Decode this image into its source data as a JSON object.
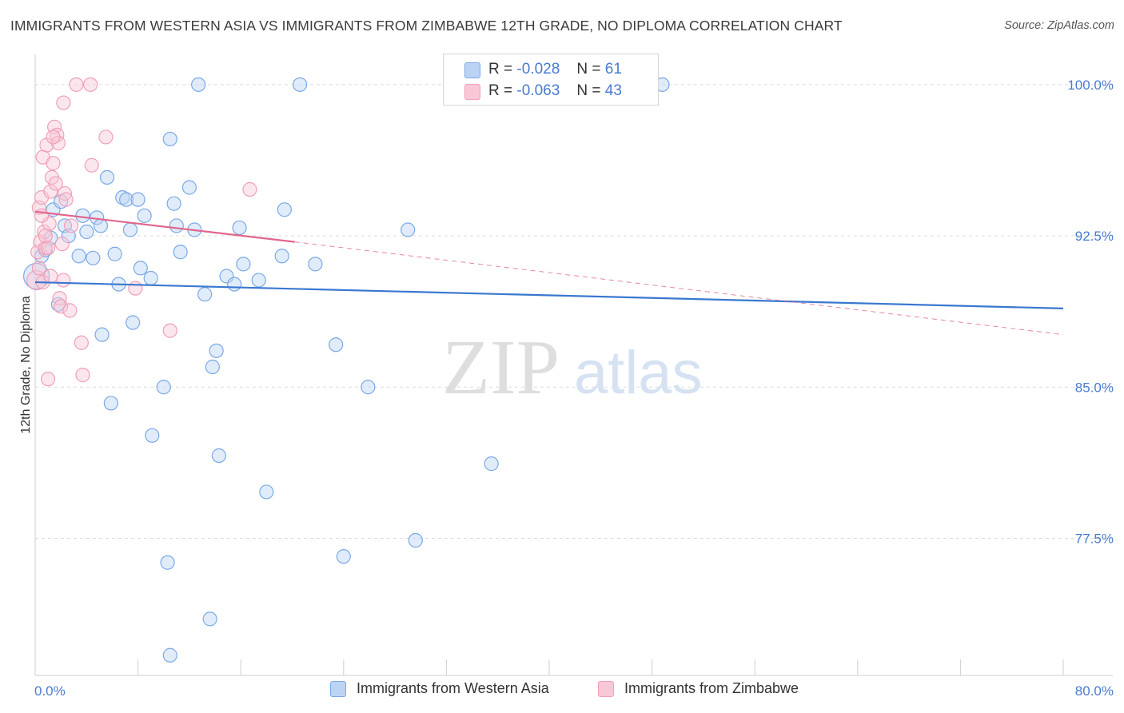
{
  "title": "IMMIGRANTS FROM WESTERN ASIA VS IMMIGRANTS FROM ZIMBABWE 12TH GRADE, NO DIPLOMA CORRELATION CHART",
  "source": "Source: ZipAtlas.com",
  "watermark": {
    "zip": "ZIP",
    "atlas": "atlas"
  },
  "legend": {
    "series1": {
      "r_label": "R =",
      "r_value": "-0.028",
      "n_label": "N =",
      "n_value": "61"
    },
    "series2": {
      "r_label": "R =",
      "r_value": "-0.063",
      "n_label": "N =",
      "n_value": "43"
    }
  },
  "chart_data": {
    "type": "scatter",
    "title": "IMMIGRANTS FROM WESTERN ASIA VS IMMIGRANTS FROM ZIMBABWE 12TH GRADE, NO DIPLOMA CORRELATION CHART",
    "xlabel": "",
    "ylabel": "12th Grade, No Diploma",
    "xlim": [
      0,
      80
    ],
    "ylim": [
      70.7,
      101.5
    ],
    "x_tick_labels": [
      "0.0%",
      "80.0%"
    ],
    "y_ticks": [
      77.5,
      85.0,
      92.5,
      100.0
    ],
    "y_tick_labels": [
      "77.5%",
      "85.0%",
      "92.5%",
      "100.0%"
    ],
    "grid": true,
    "series": [
      {
        "name": "Immigrants from Western Asia",
        "color": "#7aa9e6",
        "fill": "#bcd4f3",
        "line_color": "#3a78d0",
        "r": -0.028,
        "n": 61,
        "trend": {
          "x": [
            0,
            80
          ],
          "y": [
            90.2,
            88.9
          ]
        },
        "points": [
          [
            0.1,
            90.5
          ],
          [
            0.5,
            91.5
          ],
          [
            0.8,
            91.8
          ],
          [
            1.2,
            92.4
          ],
          [
            1.4,
            93.8
          ],
          [
            1.8,
            89.1
          ],
          [
            2.0,
            94.2
          ],
          [
            2.3,
            93.0
          ],
          [
            2.6,
            92.5
          ],
          [
            3.4,
            91.5
          ],
          [
            3.7,
            93.5
          ],
          [
            4.0,
            92.7
          ],
          [
            4.5,
            91.4
          ],
          [
            4.8,
            93.4
          ],
          [
            5.1,
            93.0
          ],
          [
            5.2,
            87.6
          ],
          [
            5.6,
            95.4
          ],
          [
            5.9,
            84.2
          ],
          [
            6.2,
            91.6
          ],
          [
            6.5,
            90.1
          ],
          [
            6.8,
            94.4
          ],
          [
            7.1,
            94.3
          ],
          [
            7.4,
            92.8
          ],
          [
            7.6,
            88.2
          ],
          [
            8.0,
            94.3
          ],
          [
            8.2,
            90.9
          ],
          [
            8.5,
            93.5
          ],
          [
            9.1,
            82.6
          ],
          [
            10.0,
            85.0
          ],
          [
            10.3,
            76.3
          ],
          [
            10.5,
            97.3
          ],
          [
            10.8,
            94.1
          ],
          [
            11.0,
            93.0
          ],
          [
            11.3,
            91.7
          ],
          [
            12.0,
            94.9
          ],
          [
            12.4,
            92.8
          ],
          [
            12.7,
            100.0
          ],
          [
            13.2,
            89.6
          ],
          [
            13.6,
            73.5
          ],
          [
            13.8,
            86.0
          ],
          [
            14.1,
            86.8
          ],
          [
            14.3,
            81.6
          ],
          [
            14.9,
            90.5
          ],
          [
            15.5,
            90.1
          ],
          [
            15.9,
            92.9
          ],
          [
            16.2,
            91.1
          ],
          [
            17.4,
            90.3
          ],
          [
            18.0,
            79.8
          ],
          [
            19.2,
            91.5
          ],
          [
            19.4,
            93.8
          ],
          [
            20.6,
            100.0
          ],
          [
            21.8,
            91.1
          ],
          [
            23.4,
            87.1
          ],
          [
            24.0,
            76.6
          ],
          [
            25.9,
            85.0
          ],
          [
            29.0,
            92.8
          ],
          [
            29.6,
            77.4
          ],
          [
            35.5,
            81.2
          ],
          [
            10.5,
            71.7
          ],
          [
            48.8,
            100.0
          ],
          [
            9.0,
            90.4
          ]
        ]
      },
      {
        "name": "Immigrants from Zimbabwe",
        "color": "#f0a0b8",
        "fill": "#f8c8d6",
        "line_color": "#e0668e",
        "r": -0.063,
        "n": 43,
        "trend": {
          "x": [
            0,
            20.2
          ],
          "y": [
            93.7,
            92.2
          ]
        },
        "trend_ext": {
          "x": [
            20.2,
            80
          ],
          "y": [
            92.2,
            87.6
          ]
        },
        "points": [
          [
            0.1,
            90.3
          ],
          [
            0.2,
            91.7
          ],
          [
            0.3,
            93.9
          ],
          [
            0.4,
            92.2
          ],
          [
            0.5,
            94.4
          ],
          [
            0.6,
            96.4
          ],
          [
            0.7,
            92.7
          ],
          [
            0.8,
            91.9
          ],
          [
            0.9,
            97.0
          ],
          [
            1.0,
            85.4
          ],
          [
            1.1,
            93.1
          ],
          [
            1.2,
            94.7
          ],
          [
            1.3,
            95.4
          ],
          [
            1.4,
            96.1
          ],
          [
            1.5,
            97.9
          ],
          [
            1.6,
            95.1
          ],
          [
            1.7,
            97.5
          ],
          [
            1.8,
            97.1
          ],
          [
            1.9,
            89.4
          ],
          [
            2.0,
            89.0
          ],
          [
            2.1,
            92.1
          ],
          [
            2.2,
            90.3
          ],
          [
            2.3,
            94.6
          ],
          [
            2.4,
            94.3
          ],
          [
            2.2,
            99.1
          ],
          [
            2.8,
            93.0
          ],
          [
            3.2,
            100.0
          ],
          [
            3.6,
            87.2
          ],
          [
            3.7,
            85.6
          ],
          [
            4.3,
            100.0
          ],
          [
            4.4,
            96.0
          ],
          [
            5.5,
            97.4
          ],
          [
            7.8,
            89.9
          ],
          [
            10.5,
            87.8
          ],
          [
            16.7,
            94.8
          ],
          [
            0.3,
            90.9
          ],
          [
            0.6,
            90.2
          ],
          [
            1.0,
            91.9
          ],
          [
            1.2,
            90.5
          ],
          [
            0.5,
            93.5
          ],
          [
            1.4,
            97.4
          ],
          [
            2.7,
            88.8
          ],
          [
            0.8,
            92.5
          ]
        ]
      }
    ]
  }
}
